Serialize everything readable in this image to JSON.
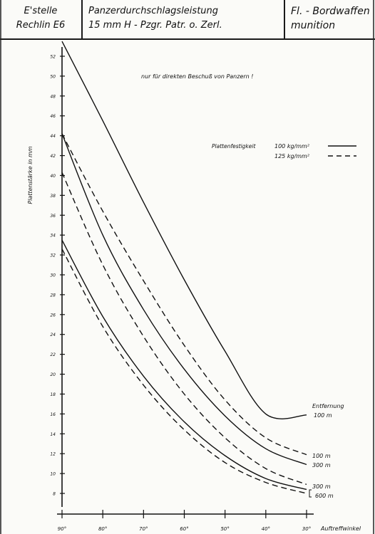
{
  "header": {
    "cell1_line1": "E'stelle",
    "cell1_line2": "Rechlin E6",
    "cell2_line1": "Panzerdurchschlagsleistung",
    "cell2_line2": "15 mm H - Pzgr. Patr. o. Zerl.",
    "cell3_line1": "Fl. - Bordwaffen",
    "cell3_line2": "munition"
  },
  "chart_data": {
    "type": "line",
    "ylabel": "Plattenstärke in mm",
    "xlabel": "Auftreffwinkel",
    "note": "nur für direkten Beschuß von Panzern !",
    "x_ticks": [
      "90°",
      "80°",
      "70°",
      "60°",
      "50°",
      "40°",
      "30°"
    ],
    "x": [
      90,
      80,
      70,
      60,
      50,
      40,
      30
    ],
    "y_ticks": [
      8,
      10,
      12,
      14,
      16,
      18,
      20,
      22,
      24,
      26,
      28,
      30,
      32,
      34,
      36,
      38,
      40,
      42,
      44,
      46,
      48,
      50,
      52
    ],
    "ylim": [
      7,
      53.5
    ],
    "xlim": [
      90,
      30
    ],
    "legend": {
      "title": "Plattenfestigkeit",
      "entries": [
        {
          "label": "100 kg/mm²",
          "style": "solid"
        },
        {
          "label": "125 kg/mm²",
          "style": "dashed"
        }
      ]
    },
    "distance_heading": "Entfernung",
    "series": [
      {
        "name": "100 m",
        "style": "solid",
        "values": [
          53.5,
          45.5,
          37.3,
          29.5,
          22.3,
          16.0,
          15.9
        ]
      },
      {
        "name": "300 m",
        "style": "solid",
        "values": [
          44.2,
          34.0,
          26.5,
          20.5,
          15.8,
          12.5,
          10.9
        ]
      },
      {
        "name": "600 m",
        "style": "solid",
        "values": [
          33.5,
          25.8,
          19.8,
          15.2,
          11.8,
          9.5,
          8.4
        ]
      },
      {
        "name": "100 m",
        "style": "dashed",
        "values": [
          44.2,
          36.4,
          29.4,
          22.9,
          17.4,
          13.6,
          11.9
        ]
      },
      {
        "name": "300 m",
        "style": "dashed",
        "values": [
          40.3,
          31.0,
          23.8,
          18.0,
          13.6,
          10.5,
          8.9
        ]
      },
      {
        "name": "600 m",
        "style": "dashed",
        "values": [
          32.6,
          24.8,
          18.9,
          14.4,
          11.1,
          9.1,
          8.0
        ]
      }
    ],
    "end_labels": [
      "100 m",
      "300 m",
      "100 m",
      "300 m",
      "600 m"
    ]
  }
}
